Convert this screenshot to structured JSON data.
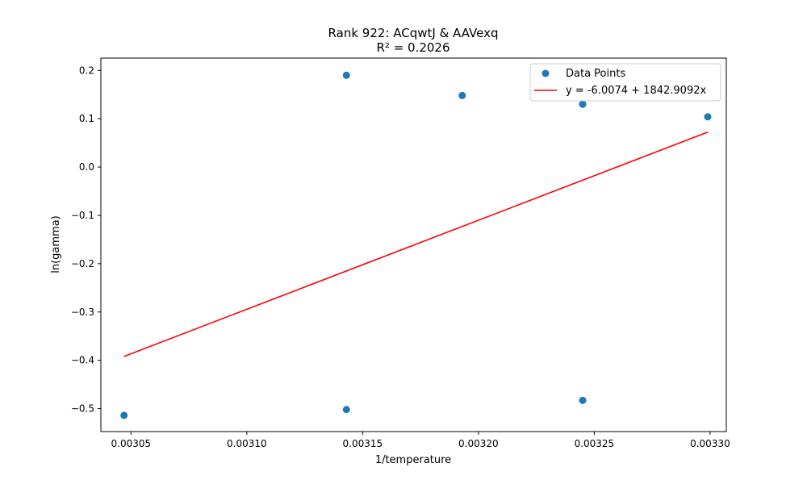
{
  "chart_data": {
    "type": "scatter",
    "title": "Rank 922: ACqwtJ & AAVexq",
    "subtitle": "R² = 0.2026",
    "xlabel": "1/temperature",
    "ylabel": "ln(gamma)",
    "xlim": [
      0.003037,
      0.003307
    ],
    "ylim": [
      -0.5475,
      0.2255
    ],
    "xticks": [
      0.00305,
      0.0031,
      0.00315,
      0.0032,
      0.00325,
      0.0033
    ],
    "xtick_labels": [
      "0.00305",
      "0.00310",
      "0.00315",
      "0.00320",
      "0.00325",
      "0.00330"
    ],
    "yticks": [
      -0.5,
      -0.4,
      -0.3,
      -0.2,
      -0.1,
      0.0,
      0.1,
      0.2
    ],
    "ytick_labels": [
      "−0.5",
      "−0.4",
      "−0.3",
      "−0.2",
      "−0.1",
      "0.0",
      "0.1",
      "0.2"
    ],
    "grid": false,
    "legend_position": "top-right",
    "series": [
      {
        "name": "Data Points",
        "kind": "scatter",
        "color": "#1f77b4",
        "x": [
          0.003047,
          0.003143,
          0.003143,
          0.003193,
          0.003245,
          0.003245,
          0.003299
        ],
        "y": [
          -0.514,
          -0.502,
          0.19,
          0.148,
          0.13,
          -0.483,
          0.104
        ]
      },
      {
        "name": "y = -6.0074 + 1842.9092x",
        "kind": "line",
        "color": "#ff0000",
        "intercept": -6.0074,
        "slope": 1842.9092,
        "x_range": [
          0.003047,
          0.003299
        ]
      }
    ]
  }
}
